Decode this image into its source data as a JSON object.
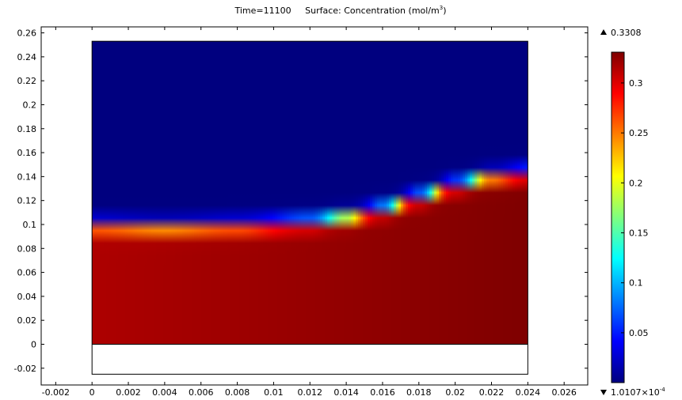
{
  "chart_data": {
    "type": "heatmap",
    "title": {
      "time_label": "Time=11100",
      "surface_label": "Surface: Concentration (mol/m",
      "unit_exponent": "3",
      "unit_close": ")"
    },
    "xlim": [
      -0.0028,
      0.0273
    ],
    "ylim": [
      -0.034,
      0.265
    ],
    "x_ticks": [
      {
        "value": -0.002,
        "label": "-0.002"
      },
      {
        "value": 0,
        "label": "0"
      },
      {
        "value": 0.002,
        "label": "0.002"
      },
      {
        "value": 0.004,
        "label": "0.004"
      },
      {
        "value": 0.006,
        "label": "0.006"
      },
      {
        "value": 0.008,
        "label": "0.008"
      },
      {
        "value": 0.01,
        "label": "0.01"
      },
      {
        "value": 0.012,
        "label": "0.012"
      },
      {
        "value": 0.014,
        "label": "0.014"
      },
      {
        "value": 0.016,
        "label": "0.016"
      },
      {
        "value": 0.018,
        "label": "0.018"
      },
      {
        "value": 0.02,
        "label": "0.02"
      },
      {
        "value": 0.022,
        "label": "0.022"
      },
      {
        "value": 0.024,
        "label": "0.024"
      },
      {
        "value": 0.026,
        "label": "0.026"
      }
    ],
    "y_ticks": [
      {
        "value": 0.26,
        "label": "0.26"
      },
      {
        "value": 0.24,
        "label": "0.24"
      },
      {
        "value": 0.22,
        "label": "0.22"
      },
      {
        "value": 0.2,
        "label": "0.2"
      },
      {
        "value": 0.18,
        "label": "0.18"
      },
      {
        "value": 0.16,
        "label": "0.16"
      },
      {
        "value": 0.14,
        "label": "0.14"
      },
      {
        "value": 0.12,
        "label": "0.12"
      },
      {
        "value": 0.1,
        "label": "0.1"
      },
      {
        "value": 0.08,
        "label": "0.08"
      },
      {
        "value": 0.06,
        "label": "0.06"
      },
      {
        "value": 0.04,
        "label": "0.04"
      },
      {
        "value": 0.02,
        "label": "0.02"
      },
      {
        "value": 0,
        "label": "0"
      },
      {
        "value": -0.02,
        "label": "-0.02"
      }
    ],
    "domain": {
      "x": [
        0,
        0.024
      ],
      "y": [
        -0.025,
        0.253
      ]
    },
    "field_region": {
      "x": [
        0,
        0.024
      ],
      "y": [
        0,
        0.253
      ]
    },
    "interface_profile": {
      "x": [
        0,
        0.004,
        0.008,
        0.012,
        0.014,
        0.016,
        0.018,
        0.02,
        0.022,
        0.024
      ],
      "front_y": [
        0.099,
        0.098,
        0.099,
        0.102,
        0.106,
        0.113,
        0.123,
        0.133,
        0.14,
        0.143
      ],
      "width": 0.011
    },
    "colorbar": {
      "min_label": "1.0107×10",
      "min_exponent": "-4",
      "max_label": "0.3308",
      "vmin": 0.00010107,
      "vmax": 0.3308,
      "colormap": "jet",
      "ticks": [
        {
          "value": 0.3,
          "label": "0.3"
        },
        {
          "value": 0.25,
          "label": "0.25"
        },
        {
          "value": 0.2,
          "label": "0.2"
        },
        {
          "value": 0.15,
          "label": "0.15"
        },
        {
          "value": 0.1,
          "label": "0.1"
        },
        {
          "value": 0.05,
          "label": "0.05"
        }
      ],
      "stops": [
        "#00007f",
        "#0000ff",
        "#007fff",
        "#00ffff",
        "#7fff7f",
        "#ffff00",
        "#ff7f00",
        "#ff0000",
        "#7f0000"
      ]
    },
    "grid": false
  }
}
